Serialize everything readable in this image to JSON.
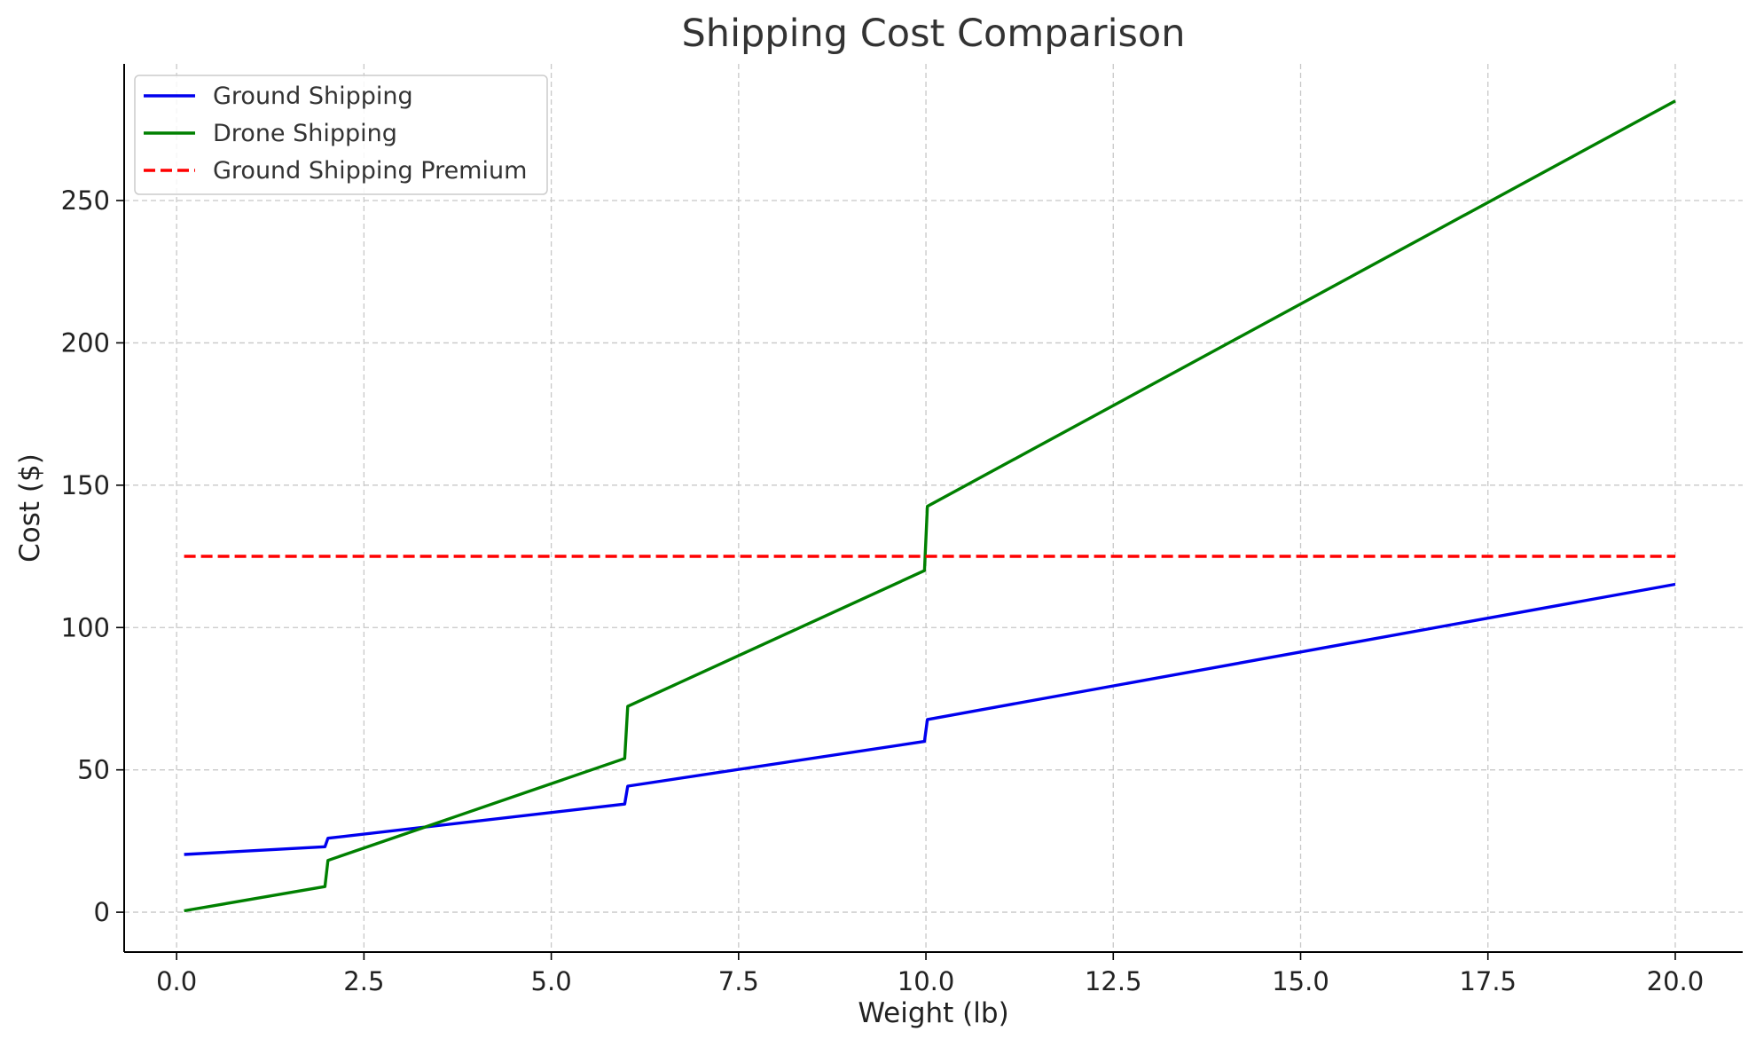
{
  "chart_data": {
    "type": "line",
    "title": "Shipping Cost Comparison",
    "xlabel": "Weight (lb)",
    "ylabel": "Cost ($)",
    "xlim": [
      -0.7,
      20.9
    ],
    "ylim": [
      -14,
      298
    ],
    "xticks": [
      0.0,
      2.5,
      5.0,
      7.5,
      10.0,
      12.5,
      15.0,
      17.5,
      20.0
    ],
    "xtick_labels": [
      "0.0",
      "2.5",
      "5.0",
      "7.5",
      "10.0",
      "12.5",
      "15.0",
      "17.5",
      "20.0"
    ],
    "yticks": [
      0,
      50,
      100,
      150,
      200,
      250
    ],
    "ytick_labels": [
      "0",
      "50",
      "100",
      "150",
      "200",
      "250"
    ],
    "grid": true,
    "legend": {
      "position": "top-left",
      "entries": [
        "Ground Shipping",
        "Drone Shipping",
        "Ground Shipping Premium"
      ]
    },
    "series": [
      {
        "name": "Ground Shipping",
        "color": "#0000ee",
        "line_style": "solid",
        "points": [
          [
            0.1,
            20.3
          ],
          [
            1.98,
            23.0
          ],
          [
            2.02,
            26.0
          ],
          [
            5.98,
            38.0
          ],
          [
            6.02,
            44.3
          ],
          [
            9.98,
            60.0
          ],
          [
            10.02,
            67.7
          ],
          [
            20.0,
            115.2
          ]
        ]
      },
      {
        "name": "Drone Shipping",
        "color": "#008000",
        "line_style": "solid",
        "points": [
          [
            0.1,
            0.5
          ],
          [
            1.98,
            9.0
          ],
          [
            2.02,
            18.2
          ],
          [
            5.98,
            54.0
          ],
          [
            6.02,
            72.3
          ],
          [
            9.98,
            120.0
          ],
          [
            10.02,
            142.6
          ],
          [
            20.0,
            285.0
          ]
        ]
      },
      {
        "name": "Ground Shipping Premium",
        "color": "#ff0000",
        "line_style": "dashed",
        "points": [
          [
            0.1,
            125
          ],
          [
            20.0,
            125
          ]
        ]
      }
    ]
  }
}
